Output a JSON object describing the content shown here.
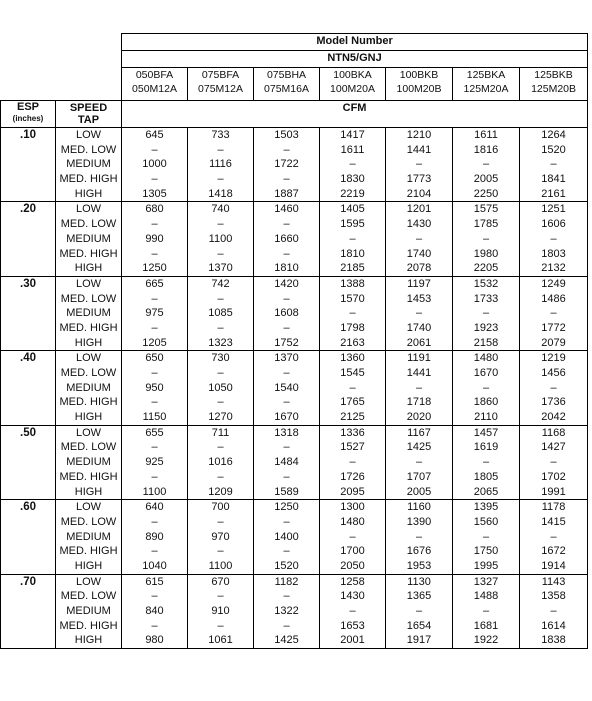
{
  "title": "Model Number",
  "series": "NTN5/GNJ",
  "cfm_label": "CFM",
  "esp_label": "ESP",
  "esp_unit": "(inches)",
  "speed_label_1": "SPEED",
  "speed_label_2": "TAP",
  "models": [
    [
      "050BFA",
      "050M12A"
    ],
    [
      "075BFA",
      "075M12A"
    ],
    [
      "075BHA",
      "075M16A"
    ],
    [
      "100BKA",
      "100M20A"
    ],
    [
      "100BKB",
      "100M20B"
    ],
    [
      "125BKA",
      "125M20A"
    ],
    [
      "125BKB",
      "125M20B"
    ]
  ],
  "speed_taps": [
    "LOW",
    "MED. LOW",
    "MEDIUM",
    "MED. HIGH",
    "HIGH"
  ],
  "rows": [
    {
      "esp": ".10",
      "values": [
        [
          "645",
          "–",
          "1000",
          "–",
          "1305"
        ],
        [
          "733",
          "–",
          "1116",
          "–",
          "1418"
        ],
        [
          "1503",
          "–",
          "1722",
          "–",
          "1887"
        ],
        [
          "1417",
          "1611",
          "–",
          "1830",
          "2219"
        ],
        [
          "1210",
          "1441",
          "–",
          "1773",
          "2104"
        ],
        [
          "1611",
          "1816",
          "–",
          "2005",
          "2250"
        ],
        [
          "1264",
          "1520",
          "–",
          "1841",
          "2161"
        ]
      ]
    },
    {
      "esp": ".20",
      "values": [
        [
          "680",
          "–",
          "990",
          "–",
          "1250"
        ],
        [
          "740",
          "–",
          "1100",
          "–",
          "1370"
        ],
        [
          "1460",
          "–",
          "1660",
          "–",
          "1810"
        ],
        [
          "1405",
          "1595",
          "–",
          "1810",
          "2185"
        ],
        [
          "1201",
          "1430",
          "–",
          "1740",
          "2078"
        ],
        [
          "1575",
          "1785",
          "–",
          "1980",
          "2205"
        ],
        [
          "1251",
          "1606",
          "–",
          "1803",
          "2132"
        ]
      ]
    },
    {
      "esp": ".30",
      "values": [
        [
          "665",
          "–",
          "975",
          "–",
          "1205"
        ],
        [
          "742",
          "–",
          "1085",
          "–",
          "1323"
        ],
        [
          "1420",
          "–",
          "1608",
          "–",
          "1752"
        ],
        [
          "1388",
          "1570",
          "–",
          "1798",
          "2163"
        ],
        [
          "1197",
          "1453",
          "–",
          "1740",
          "2061"
        ],
        [
          "1532",
          "1733",
          "–",
          "1923",
          "2158"
        ],
        [
          "1249",
          "1486",
          "–",
          "1772",
          "2079"
        ]
      ]
    },
    {
      "esp": ".40",
      "values": [
        [
          "650",
          "–",
          "950",
          "–",
          "1150"
        ],
        [
          "730",
          "–",
          "1050",
          "–",
          "1270"
        ],
        [
          "1370",
          "–",
          "1540",
          "–",
          "1670"
        ],
        [
          "1360",
          "1545",
          "–",
          "1765",
          "2125"
        ],
        [
          "1191",
          "1441",
          "–",
          "1718",
          "2020"
        ],
        [
          "1480",
          "1670",
          "–",
          "1860",
          "2110"
        ],
        [
          "1219",
          "1456",
          "–",
          "1736",
          "2042"
        ]
      ]
    },
    {
      "esp": ".50",
      "values": [
        [
          "655",
          "–",
          "925",
          "–",
          "1100"
        ],
        [
          "711",
          "–",
          "1016",
          "–",
          "1209"
        ],
        [
          "1318",
          "–",
          "1484",
          "–",
          "1589"
        ],
        [
          "1336",
          "1527",
          "–",
          "1726",
          "2095"
        ],
        [
          "1167",
          "1425",
          "–",
          "1707",
          "2005"
        ],
        [
          "1457",
          "1619",
          "–",
          "1805",
          "2065"
        ],
        [
          "1168",
          "1427",
          "–",
          "1702",
          "1991"
        ]
      ]
    },
    {
      "esp": ".60",
      "values": [
        [
          "640",
          "–",
          "890",
          "–",
          "1040"
        ],
        [
          "700",
          "–",
          "970",
          "–",
          "1100"
        ],
        [
          "1250",
          "–",
          "1400",
          "–",
          "1520"
        ],
        [
          "1300",
          "1480",
          "–",
          "1700",
          "2050"
        ],
        [
          "1160",
          "1390",
          "–",
          "1676",
          "1953"
        ],
        [
          "1395",
          "1560",
          "–",
          "1750",
          "1995"
        ],
        [
          "1178",
          "1415",
          "–",
          "1672",
          "1914"
        ]
      ]
    },
    {
      "esp": ".70",
      "values": [
        [
          "615",
          "–",
          "840",
          "–",
          "980"
        ],
        [
          "670",
          "–",
          "910",
          "–",
          "1061"
        ],
        [
          "1182",
          "–",
          "1322",
          "–",
          "1425"
        ],
        [
          "1258",
          "1430",
          "–",
          "1653",
          "2001"
        ],
        [
          "1130",
          "1365",
          "–",
          "1654",
          "1917"
        ],
        [
          "1327",
          "1488",
          "–",
          "1681",
          "1922"
        ],
        [
          "1143",
          "1358",
          "–",
          "1614",
          "1838"
        ]
      ]
    }
  ]
}
